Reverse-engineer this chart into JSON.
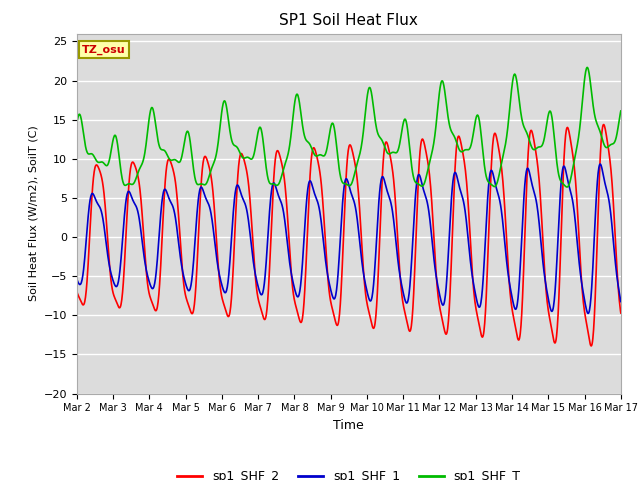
{
  "title": "SP1 Soil Heat Flux",
  "xlabel": "Time",
  "ylabel": "Soil Heat Flux (W/m2), SoilT (C)",
  "ylim": [
    -20,
    26
  ],
  "yticks": [
    -20,
    -15,
    -10,
    -5,
    0,
    5,
    10,
    15,
    20,
    25
  ],
  "xtick_labels": [
    "Mar 2",
    "Mar 3",
    "Mar 4",
    "Mar 5",
    "Mar 6",
    "Mar 7",
    "Mar 8",
    "Mar 9",
    "Mar 10",
    "Mar 11",
    "Mar 12",
    "Mar 13",
    "Mar 14",
    "Mar 15",
    "Mar 16",
    "Mar 17"
  ],
  "bg_color": "#dcdcdc",
  "fig_color": "#ffffff",
  "line_colors": {
    "shf2": "#ff0000",
    "shf1": "#0000cc",
    "shft": "#00bb00"
  },
  "line_widths": {
    "shf2": 1.2,
    "shf1": 1.2,
    "shft": 1.2
  },
  "legend_labels": [
    "sp1_SHF_2",
    "sp1_SHF_1",
    "sp1_SHF_T"
  ],
  "tz_label": "TZ_osu",
  "tz_bg": "#ffffaa",
  "tz_text_color": "#cc0000",
  "n_days": 15,
  "samples_per_day": 96
}
